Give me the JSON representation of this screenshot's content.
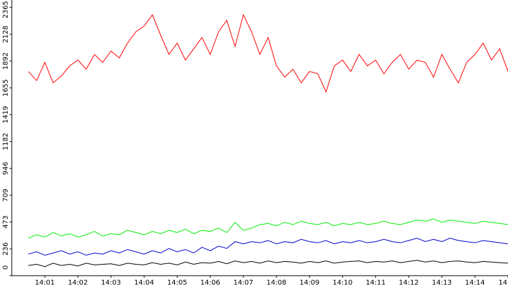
{
  "chart_data": {
    "type": "line",
    "x": [
      0.5,
      0.75,
      1,
      1.25,
      1.5,
      1.75,
      2,
      2.25,
      2.5,
      2.75,
      3,
      3.25,
      3.5,
      3.75,
      4,
      4.25,
      4.5,
      4.75,
      5,
      5.25,
      5.5,
      5.75,
      6,
      6.25,
      6.5,
      6.75,
      7,
      7.25,
      7.5,
      7.75,
      8,
      8.25,
      8.5,
      8.75,
      9,
      9.25,
      9.5,
      9.75,
      10,
      10.25,
      10.5,
      10.75,
      11,
      11.25,
      11.5,
      11.75,
      12,
      12.25,
      12.5,
      12.75,
      13,
      13.25,
      13.5,
      13.75,
      14,
      14.25,
      14.5,
      14.75,
      15
    ],
    "series": [
      {
        "color": "#ff0000",
        "values": [
          1800,
          1720,
          1880,
          1700,
          1760,
          1850,
          1900,
          1820,
          1950,
          1880,
          1980,
          1920,
          2050,
          2150,
          2200,
          2300,
          2120,
          1950,
          2050,
          1900,
          2000,
          2100,
          1950,
          2150,
          2250,
          2020,
          2300,
          2150,
          1950,
          2100,
          1850,
          1750,
          1820,
          1700,
          1800,
          1780,
          1620,
          1850,
          1900,
          1800,
          1950,
          1850,
          1900,
          1780,
          1880,
          1950,
          1820,
          1900,
          1880,
          1750,
          1950,
          1820,
          1700,
          1880,
          1950,
          2050,
          1900,
          2000,
          1800
        ]
      },
      {
        "color": "#00ee00",
        "values": [
          330,
          360,
          340,
          380,
          350,
          370,
          340,
          360,
          390,
          350,
          370,
          360,
          400,
          380,
          360,
          390,
          370,
          400,
          380,
          410,
          370,
          400,
          390,
          420,
          380,
          470,
          400,
          420,
          450,
          460,
          440,
          470,
          450,
          480,
          460,
          450,
          470,
          440,
          460,
          450,
          470,
          450,
          460,
          480,
          460,
          450,
          470,
          490,
          480,
          500,
          470,
          490,
          480,
          470,
          460,
          480,
          470,
          460,
          450
        ]
      },
      {
        "color": "#0000cc",
        "values": [
          190,
          210,
          180,
          200,
          220,
          190,
          210,
          180,
          200,
          190,
          220,
          200,
          230,
          210,
          190,
          220,
          200,
          240,
          210,
          230,
          200,
          250,
          220,
          260,
          240,
          300,
          280,
          300,
          290,
          310,
          280,
          300,
          290,
          320,
          300,
          290,
          310,
          280,
          300,
          290,
          310,
          290,
          300,
          320,
          300,
          290,
          310,
          330,
          300,
          320,
          300,
          330,
          310,
          300,
          290,
          310,
          300,
          290,
          280
        ]
      },
      {
        "color": "#000000",
        "values": [
          90,
          100,
          80,
          110,
          90,
          100,
          85,
          110,
          95,
          100,
          105,
          90,
          110,
          100,
          95,
          115,
          100,
          110,
          95,
          120,
          100,
          115,
          110,
          125,
          105,
          130,
          115,
          125,
          110,
          130,
          115,
          125,
          120,
          110,
          125,
          115,
          130,
          110,
          120,
          125,
          130,
          115,
          125,
          120,
          130,
          115,
          125,
          135,
          120,
          130,
          115,
          125,
          130,
          120,
          115,
          125,
          120,
          115,
          110
        ]
      }
    ],
    "xlim": [
      0,
      15
    ],
    "xticks": [
      {
        "value": 1,
        "label": "14:01"
      },
      {
        "value": 2,
        "label": "14:02"
      },
      {
        "value": 3,
        "label": "14:03"
      },
      {
        "value": 4,
        "label": "14:04"
      },
      {
        "value": 5,
        "label": "14:05"
      },
      {
        "value": 6,
        "label": "14:06"
      },
      {
        "value": 7,
        "label": "14:07"
      },
      {
        "value": 8,
        "label": "14:08"
      },
      {
        "value": 9,
        "label": "14:09"
      },
      {
        "value": 10,
        "label": "14:10"
      },
      {
        "value": 11,
        "label": "14:11"
      },
      {
        "value": 12,
        "label": "14:12"
      },
      {
        "value": 13,
        "label": "14:13"
      },
      {
        "value": 14,
        "label": "14:14"
      },
      {
        "value": 15,
        "label": "14"
      }
    ],
    "ylim": [
      0,
      2430
    ],
    "yticks": [
      0,
      236,
      473,
      709,
      946,
      1182,
      1419,
      1655,
      1892,
      2128,
      2365
    ]
  }
}
